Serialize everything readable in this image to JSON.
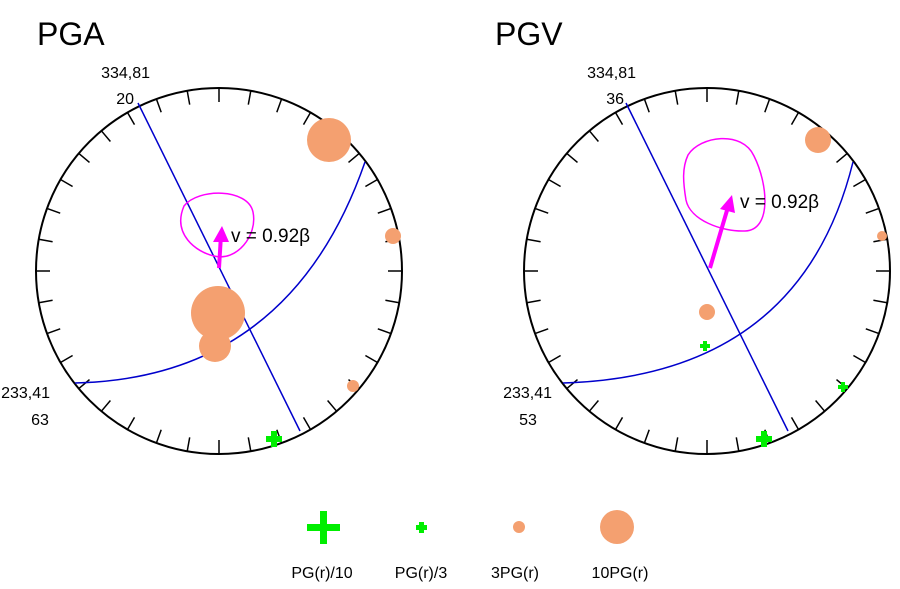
{
  "panels": [
    {
      "title": "PGA",
      "plane1": "334,81",
      "plane1_value": "20",
      "plane2": "233,41",
      "plane2_value": "63",
      "annotation": "v = 0.92β"
    },
    {
      "title": "PGV",
      "plane1": "334,81",
      "plane1_value": "36",
      "plane2": "233,41",
      "plane2_value": "53",
      "annotation": "v = 0.92β"
    }
  ],
  "legend": [
    {
      "label": "PG(r)/10",
      "symbol": "large-plus",
      "color": "#00ee00"
    },
    {
      "label": "PG(r)/3",
      "symbol": "small-plus",
      "color": "#00ee00"
    },
    {
      "label": "3PG(r)",
      "symbol": "small-circle",
      "color": "#f4a070"
    },
    {
      "label": "10PG(r)",
      "symbol": "large-circle",
      "color": "#f4a070"
    }
  ],
  "colors": {
    "nodal_plane": "#0000cc",
    "contour": "#ff00ff",
    "arrow": "#ff00ff",
    "circle_marker": "#f4a070",
    "plus_marker": "#00ee00"
  }
}
